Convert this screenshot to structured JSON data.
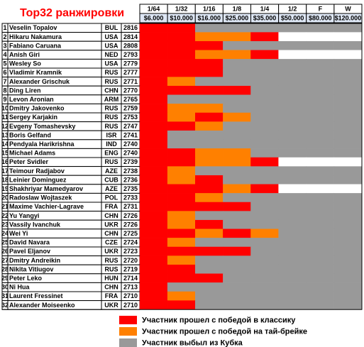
{
  "header": {
    "title": "Top32 ранжировки"
  },
  "rounds": [
    {
      "label": "1/64",
      "prize": "$6.000"
    },
    {
      "label": "1/32",
      "prize": "$10.000"
    },
    {
      "label": "1/16",
      "prize": "$16.000"
    },
    {
      "label": "1/8",
      "prize": "$25.000"
    },
    {
      "label": "1/4",
      "prize": "$35.000"
    },
    {
      "label": "1/2",
      "prize": "$50.000"
    },
    {
      "label": "F",
      "prize": "$80.000"
    },
    {
      "label": "W",
      "prize": "$120.000"
    }
  ],
  "rows": [
    {
      "n": "1",
      "name": "Veselin Topalov",
      "country": "BUL",
      "rating": "2816",
      "cells": [
        "#ff0000",
        "#ff0000",
        "#999999",
        "#999999",
        "#999999",
        "#999999",
        "#999999",
        "#999999"
      ]
    },
    {
      "n": "2",
      "name": "Hikaru Nakamura",
      "country": "USA",
      "rating": "2814",
      "cells": [
        "#ff0000",
        "#ff0000",
        "#ff8000",
        "#ff8000",
        "#ff0000",
        "#ffffff",
        "#ffffff",
        "#ffffff"
      ]
    },
    {
      "n": "3",
      "name": "Fabiano Caruana",
      "country": "USA",
      "rating": "2808",
      "cells": [
        "#ff0000",
        "#ff0000",
        "#ff0000",
        "#999999",
        "#999999",
        "#999999",
        "#999999",
        "#999999"
      ]
    },
    {
      "n": "4",
      "name": "Anish Giri",
      "country": "NED",
      "rating": "2793",
      "cells": [
        "#ff0000",
        "#ff0000",
        "#ff8000",
        "#ff8000",
        "#ff0000",
        "#ffffff",
        "#ffffff",
        "#ffffff"
      ]
    },
    {
      "n": "5",
      "name": "Wesley So",
      "country": "USA",
      "rating": "2779",
      "cells": [
        "#ff0000",
        "#ff0000",
        "#ff0000",
        "#999999",
        "#999999",
        "#999999",
        "#999999",
        "#999999"
      ]
    },
    {
      "n": "6",
      "name": "Vladimir Kramnik",
      "country": "RUS",
      "rating": "2777",
      "cells": [
        "#ff0000",
        "#ff0000",
        "#ff0000",
        "#999999",
        "#999999",
        "#999999",
        "#999999",
        "#999999"
      ]
    },
    {
      "n": "7",
      "name": "Alexander Grischuk",
      "country": "RUS",
      "rating": "2771",
      "cells": [
        "#ff0000",
        "#ff8000",
        "#999999",
        "#999999",
        "#999999",
        "#999999",
        "#999999",
        "#999999"
      ]
    },
    {
      "n": "8",
      "name": "Ding Liren",
      "country": "CHN",
      "rating": "2770",
      "cells": [
        "#ff0000",
        "#ff0000",
        "#ff0000",
        "#ff0000",
        "#999999",
        "#999999",
        "#999999",
        "#999999"
      ]
    },
    {
      "n": "9",
      "name": "Levon Aronian",
      "country": "ARM",
      "rating": "2765",
      "cells": [
        "#ff0000",
        "#999999",
        "#999999",
        "#999999",
        "#999999",
        "#999999",
        "#999999",
        "#999999"
      ]
    },
    {
      "n": "10",
      "name": "Dmitry Jakovenko",
      "country": "RUS",
      "rating": "2759",
      "cells": [
        "#ff0000",
        "#ff8000",
        "#ff8000",
        "#999999",
        "#999999",
        "#999999",
        "#999999",
        "#999999"
      ]
    },
    {
      "n": "11",
      "name": "Sergey Karjakin",
      "country": "RUS",
      "rating": "2753",
      "cells": [
        "#ff0000",
        "#ff8000",
        "#ff0000",
        "#ff8000",
        "#999999",
        "#999999",
        "#999999",
        "#999999"
      ]
    },
    {
      "n": "12",
      "name": "Evgeny Tomashevsky",
      "country": "RUS",
      "rating": "2747",
      "cells": [
        "#ff0000",
        "#ff0000",
        "#ff8000",
        "#999999",
        "#999999",
        "#999999",
        "#999999",
        "#999999"
      ]
    },
    {
      "n": "13",
      "name": "Boris Gelfand",
      "country": "ISR",
      "rating": "2741",
      "cells": [
        "#ff0000",
        "#999999",
        "#999999",
        "#999999",
        "#999999",
        "#999999",
        "#999999",
        "#999999"
      ]
    },
    {
      "n": "14",
      "name": "Pendyala Harikrishna",
      "country": "IND",
      "rating": "2740",
      "cells": [
        "#ff0000",
        "#999999",
        "#999999",
        "#999999",
        "#999999",
        "#999999",
        "#999999",
        "#999999"
      ]
    },
    {
      "n": "15",
      "name": "Michael Adams",
      "country": "ENG",
      "rating": "2740",
      "cells": [
        "#ff0000",
        "#ff0000",
        "#ff8000",
        "#ff8000",
        "#999999",
        "#999999",
        "#999999",
        "#999999"
      ]
    },
    {
      "n": "16",
      "name": "Peter Svidler",
      "country": "RUS",
      "rating": "2739",
      "cells": [
        "#ff0000",
        "#ff0000",
        "#ff8000",
        "#ff8000",
        "#ff0000",
        "#ffffff",
        "#ffffff",
        "#ffffff"
      ]
    },
    {
      "n": "17",
      "name": "Teimour Radjabov",
      "country": "AZE",
      "rating": "2738",
      "cells": [
        "#ff0000",
        "#ff8000",
        "#999999",
        "#999999",
        "#999999",
        "#999999",
        "#999999",
        "#999999"
      ]
    },
    {
      "n": "18",
      "name": "Leinier Dominguez",
      "country": "CUB",
      "rating": "2736",
      "cells": [
        "#ff0000",
        "#ff8000",
        "#ff0000",
        "#999999",
        "#999999",
        "#999999",
        "#999999",
        "#999999"
      ]
    },
    {
      "n": "19",
      "name": "Shakhriyar Mamedyarov",
      "country": "AZE",
      "rating": "2735",
      "cells": [
        "#ff0000",
        "#ff0000",
        "#ff0000",
        "#ff8000",
        "#ff0000",
        "#ffffff",
        "#ffffff",
        "#ffffff"
      ]
    },
    {
      "n": "20",
      "name": "Radoslaw Wojtaszek",
      "country": "POL",
      "rating": "2733",
      "cells": [
        "#ff0000",
        "#ff0000",
        "#ff8000",
        "#999999",
        "#999999",
        "#999999",
        "#999999",
        "#999999"
      ]
    },
    {
      "n": "21",
      "name": "Maxime Vachier-Lagrave",
      "country": "FRA",
      "rating": "2731",
      "cells": [
        "#ff0000",
        "#ff0000",
        "#ff0000",
        "#ff0000",
        "#999999",
        "#999999",
        "#999999",
        "#999999"
      ]
    },
    {
      "n": "22",
      "name": "Yu Yangyi",
      "country": "CHN",
      "rating": "2726",
      "cells": [
        "#ff0000",
        "#ff8000",
        "#999999",
        "#999999",
        "#999999",
        "#999999",
        "#999999",
        "#999999"
      ]
    },
    {
      "n": "23",
      "name": "Vassily Ivanchuk",
      "country": "UKR",
      "rating": "2726",
      "cells": [
        "#ff0000",
        "#ff8000",
        "#ff0000",
        "#999999",
        "#999999",
        "#999999",
        "#999999",
        "#999999"
      ]
    },
    {
      "n": "24",
      "name": "Wei Yi",
      "country": "CHN",
      "rating": "2725",
      "cells": [
        "#ff0000",
        "#ff0000",
        "#ff8000",
        "#ff0000",
        "#ff8000",
        "#999999",
        "#999999",
        "#999999"
      ]
    },
    {
      "n": "25",
      "name": "David Navara",
      "country": "CZE",
      "rating": "2724",
      "cells": [
        "#ff0000",
        "#ff8000",
        "#999999",
        "#999999",
        "#999999",
        "#999999",
        "#999999",
        "#999999"
      ]
    },
    {
      "n": "26",
      "name": "Pavel Eljanov",
      "country": "UKR",
      "rating": "2723",
      "cells": [
        "#ff0000",
        "#ff0000",
        "#ff0000",
        "#ff0000",
        "#999999",
        "#999999",
        "#999999",
        "#999999"
      ]
    },
    {
      "n": "27",
      "name": "Dmitry Andreikin",
      "country": "RUS",
      "rating": "2720",
      "cells": [
        "#ff0000",
        "#ff8000",
        "#999999",
        "#999999",
        "#999999",
        "#999999",
        "#999999",
        "#999999"
      ]
    },
    {
      "n": "28",
      "name": "Nikita Vitiugov",
      "country": "RUS",
      "rating": "2719",
      "cells": [
        "#ff0000",
        "#ff0000",
        "#999999",
        "#999999",
        "#999999",
        "#999999",
        "#999999",
        "#999999"
      ]
    },
    {
      "n": "29",
      "name": "Peter Leko",
      "country": "HUN",
      "rating": "2714",
      "cells": [
        "#ff0000",
        "#ff0000",
        "#ff0000",
        "#999999",
        "#999999",
        "#999999",
        "#999999",
        "#999999"
      ]
    },
    {
      "n": "30",
      "name": "Ni Hua",
      "country": "CHN",
      "rating": "2713",
      "cells": [
        "#ff0000",
        "#999999",
        "#999999",
        "#999999",
        "#999999",
        "#999999",
        "#999999",
        "#999999"
      ]
    },
    {
      "n": "31",
      "name": "Laurent Fressinet",
      "country": "FRA",
      "rating": "2710",
      "cells": [
        "#ff0000",
        "#ff8000",
        "#999999",
        "#999999",
        "#999999",
        "#999999",
        "#999999",
        "#999999"
      ]
    },
    {
      "n": "32",
      "name": "Alexander Moiseenko",
      "country": "UKR",
      "rating": "2710",
      "cells": [
        "#ff0000",
        "#ff0000",
        "#999999",
        "#999999",
        "#999999",
        "#999999",
        "#999999",
        "#999999"
      ]
    }
  ],
  "legend": [
    {
      "color": "#ff0000",
      "label": "Участник прошел с победой в классику"
    },
    {
      "color": "#ff8000",
      "label": "Участник прошел с победой на тай-брейке"
    },
    {
      "color": "#999999",
      "label": "Участник выбыл из Кубка"
    }
  ]
}
